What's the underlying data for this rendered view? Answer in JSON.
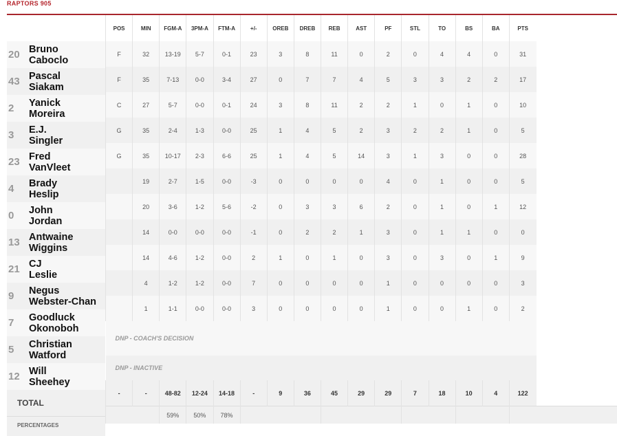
{
  "team": "RAPTORS 905",
  "headers": [
    "POS",
    "MIN",
    "FGM-A",
    "3PM-A",
    "FTM-A",
    "+/-",
    "OREB",
    "DREB",
    "REB",
    "AST",
    "PF",
    "STL",
    "TO",
    "BS",
    "BA",
    "PTS"
  ],
  "players": [
    {
      "num": "20",
      "first": "Bruno",
      "last": "Caboclo",
      "stats": [
        "F",
        "32",
        "13-19",
        "5-7",
        "0-1",
        "23",
        "3",
        "8",
        "11",
        "0",
        "2",
        "0",
        "4",
        "4",
        "0",
        "31"
      ]
    },
    {
      "num": "43",
      "first": "Pascal",
      "last": "Siakam",
      "stats": [
        "F",
        "35",
        "7-13",
        "0-0",
        "3-4",
        "27",
        "0",
        "7",
        "7",
        "4",
        "5",
        "3",
        "3",
        "2",
        "2",
        "17"
      ]
    },
    {
      "num": "2",
      "first": "Yanick",
      "last": "Moreira",
      "stats": [
        "C",
        "27",
        "5-7",
        "0-0",
        "0-1",
        "24",
        "3",
        "8",
        "11",
        "2",
        "2",
        "1",
        "0",
        "1",
        "0",
        "10"
      ]
    },
    {
      "num": "3",
      "first": "E.J.",
      "last": "Singler",
      "stats": [
        "G",
        "35",
        "2-4",
        "1-3",
        "0-0",
        "25",
        "1",
        "4",
        "5",
        "2",
        "3",
        "2",
        "2",
        "1",
        "0",
        "5"
      ]
    },
    {
      "num": "23",
      "first": "Fred",
      "last": "VanVleet",
      "stats": [
        "G",
        "35",
        "10-17",
        "2-3",
        "6-6",
        "25",
        "1",
        "4",
        "5",
        "14",
        "3",
        "1",
        "3",
        "0",
        "0",
        "28"
      ]
    },
    {
      "num": "4",
      "first": "Brady",
      "last": "Heslip",
      "stats": [
        "",
        "19",
        "2-7",
        "1-5",
        "0-0",
        "-3",
        "0",
        "0",
        "0",
        "0",
        "4",
        "0",
        "1",
        "0",
        "0",
        "5"
      ]
    },
    {
      "num": "0",
      "first": "John",
      "last": "Jordan",
      "stats": [
        "",
        "20",
        "3-6",
        "1-2",
        "5-6",
        "-2",
        "0",
        "3",
        "3",
        "6",
        "2",
        "0",
        "1",
        "0",
        "1",
        "12"
      ]
    },
    {
      "num": "13",
      "first": "Antwaine",
      "last": "Wiggins",
      "stats": [
        "",
        "14",
        "0-0",
        "0-0",
        "0-0",
        "-1",
        "0",
        "2",
        "2",
        "1",
        "3",
        "0",
        "1",
        "1",
        "0",
        "0"
      ]
    },
    {
      "num": "21",
      "first": "CJ",
      "last": "Leslie",
      "stats": [
        "",
        "14",
        "4-6",
        "1-2",
        "0-0",
        "2",
        "1",
        "0",
        "1",
        "0",
        "3",
        "0",
        "3",
        "0",
        "1",
        "9"
      ]
    },
    {
      "num": "9",
      "first": "Negus",
      "last": "Webster-Chan",
      "stats": [
        "",
        "4",
        "1-2",
        "1-2",
        "0-0",
        "7",
        "0",
        "0",
        "0",
        "0",
        "1",
        "0",
        "0",
        "0",
        "0",
        "3"
      ]
    },
    {
      "num": "7",
      "first": "Goodluck",
      "last": "Okonoboh",
      "stats": [
        "",
        "1",
        "1-1",
        "0-0",
        "0-0",
        "3",
        "0",
        "0",
        "0",
        "0",
        "1",
        "0",
        "0",
        "1",
        "0",
        "2"
      ]
    }
  ],
  "dnp": [
    {
      "num": "5",
      "first": "Christian",
      "last": "Watford",
      "reason": "DNP - COACH'S DECISION"
    },
    {
      "num": "12",
      "first": "Will",
      "last": "Sheehey",
      "reason": "DNP - INACTIVE"
    }
  ],
  "total_label": "TOTAL",
  "percentages_label": "PERCENTAGES",
  "totals": [
    "-",
    "-",
    "48-82",
    "12-24",
    "14-18",
    "-",
    "9",
    "36",
    "45",
    "29",
    "29",
    "7",
    "18",
    "10",
    "4",
    "122"
  ],
  "percentages": {
    "fg": "59%",
    "three": "50%",
    "ft": "78%"
  }
}
